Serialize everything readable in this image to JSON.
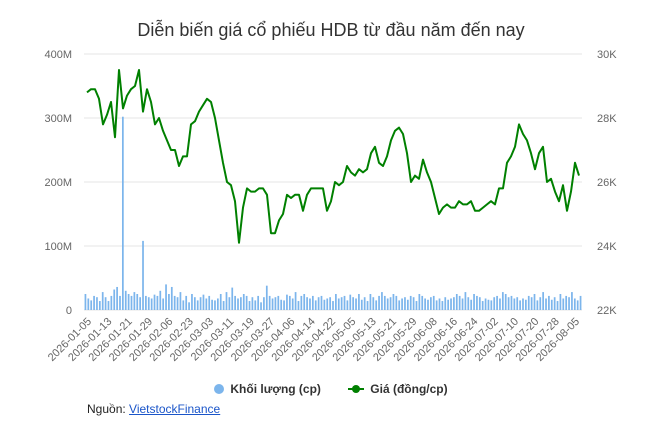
{
  "chart_data": {
    "type": "line",
    "title": "Diễn biến giá cổ phiếu HDB từ đầu năm đến nay",
    "x_tick_labels": [
      "2026-01-05",
      "2026-01-13",
      "2026-01-21",
      "2026-01-29",
      "2026-02-06",
      "2026-02-23",
      "2026-03-03",
      "2026-03-11",
      "2026-03-19",
      "2026-03-27",
      "2026-04-06",
      "2026-04-14",
      "2026-04-22",
      "2026-05-05",
      "2026-05-13",
      "2026-05-21",
      "2026-05-29",
      "2026-06-08",
      "2026-06-16",
      "2026-06-24",
      "2026-07-02",
      "2026-07-10",
      "2026-07-20",
      "2026-07-28",
      "2026-08-05"
    ],
    "left_axis": {
      "ticks": [
        "0",
        "100M",
        "200M",
        "300M",
        "400M"
      ],
      "range": [
        0,
        400
      ]
    },
    "right_axis": {
      "ticks": [
        "22K",
        "24K",
        "26K",
        "28K",
        "30K"
      ],
      "range": [
        22,
        30
      ]
    },
    "series": [
      {
        "name": "Khối lượng (cp)",
        "type": "column",
        "color": "#7cb5ec",
        "axis": "left",
        "unit": "M",
        "values": [
          25,
          18,
          15,
          22,
          20,
          14,
          28,
          20,
          14,
          22,
          32,
          36,
          22,
          302,
          30,
          25,
          22,
          28,
          25,
          20,
          108,
          22,
          20,
          18,
          24,
          22,
          30,
          18,
          40,
          25,
          36,
          22,
          20,
          28,
          15,
          22,
          12,
          25,
          20,
          15,
          20,
          24,
          18,
          22,
          16,
          15,
          18,
          25,
          14,
          28,
          20,
          35,
          22,
          18,
          20,
          25,
          22,
          14,
          20,
          15,
          22,
          12,
          20,
          38,
          22,
          18,
          20,
          22,
          16,
          15,
          24,
          22,
          18,
          28,
          14,
          22,
          25,
          20,
          18,
          22,
          15,
          20,
          22,
          16,
          18,
          20,
          14,
          25,
          18,
          20,
          22,
          15,
          24,
          20,
          18,
          25,
          16,
          20,
          14,
          25,
          20,
          15,
          22,
          28,
          22,
          18,
          20,
          25,
          22,
          15,
          18,
          20,
          16,
          22,
          20,
          14,
          25,
          22,
          18,
          16,
          20,
          22,
          15,
          18,
          14,
          20,
          16,
          18,
          20,
          25,
          22,
          18,
          28,
          20,
          16,
          25,
          22,
          20,
          14,
          18,
          16,
          15,
          20,
          22,
          18,
          28,
          25,
          20,
          22,
          18,
          20,
          15,
          18,
          16,
          22,
          20,
          25,
          15,
          20,
          28,
          18,
          22,
          16,
          20,
          14,
          25,
          18,
          22,
          20,
          28,
          18,
          15,
          22
        ],
        "sample_indices": [
          0,
          3,
          6,
          9,
          12,
          15,
          18,
          21,
          24,
          27,
          30,
          33,
          36,
          39,
          42,
          45,
          48,
          51,
          54,
          57,
          60,
          63,
          66,
          69,
          72,
          75,
          78,
          81,
          84,
          87,
          90,
          93,
          96,
          99,
          102,
          105,
          108,
          111,
          114,
          117,
          120,
          123,
          126,
          129,
          132,
          135,
          138,
          141,
          144,
          147,
          150,
          153,
          156,
          159,
          162,
          165,
          168,
          171
        ]
      },
      {
        "name": "Giá (đồng/cp)",
        "type": "line",
        "color": "#008000",
        "axis": "right",
        "unit": "K",
        "values": [
          28.8,
          28.9,
          28.9,
          28.6,
          27.8,
          28.1,
          28.5,
          27.4,
          29.5,
          28.3,
          28.7,
          28.9,
          29.0,
          29.5,
          28.2,
          28.9,
          28.5,
          27.8,
          28.0,
          27.6,
          27.3,
          27.0,
          27.0,
          26.5,
          26.8,
          26.8,
          27.8,
          27.9,
          28.2,
          28.4,
          28.6,
          28.5,
          28.0,
          27.3,
          26.6,
          26.0,
          25.9,
          25.4,
          24.1,
          25.2,
          25.8,
          25.7,
          25.7,
          25.8,
          25.8,
          25.6,
          24.4,
          24.4,
          24.8,
          25.0,
          25.6,
          25.5,
          25.6,
          25.6,
          25.1,
          25.6,
          25.8,
          25.8,
          25.8,
          25.8,
          25.1,
          25.4,
          26.0,
          25.9,
          26.0,
          26.5,
          26.3,
          26.2,
          26.4,
          26.3,
          26.4,
          26.9,
          27.1,
          26.6,
          26.5,
          26.8,
          27.3,
          27.6,
          27.7,
          27.5,
          26.9,
          26.0,
          26.2,
          26.1,
          26.7,
          26.3,
          26.0,
          25.5,
          25.0,
          25.2,
          25.3,
          25.2,
          25.2,
          25.4,
          25.3,
          25.3,
          25.4,
          25.1,
          25.1,
          25.2,
          25.3,
          25.4,
          25.3,
          25.8,
          25.8,
          26.6,
          26.8,
          27.1,
          27.8,
          27.5,
          27.3,
          26.9,
          26.4,
          26.9,
          27.1,
          26.0,
          26.1,
          25.7,
          25.4,
          25.9,
          25.1,
          25.7,
          26.6,
          26.2
        ]
      }
    ],
    "legend_position": "bottom-center",
    "grid": true
  },
  "legend": {
    "volume_label": "Khối lượng (cp)",
    "price_label": "Giá (đồng/cp)"
  },
  "source": {
    "prefix": "Nguồn:",
    "link_text": "VietstockFinance"
  }
}
